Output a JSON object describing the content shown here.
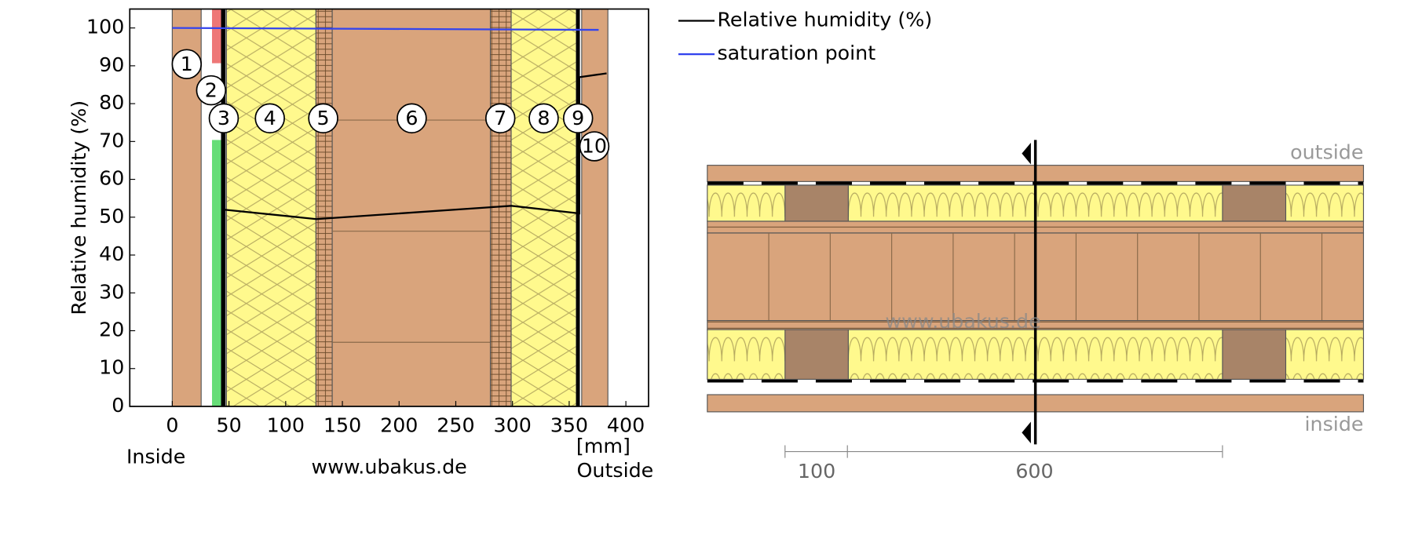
{
  "chart_data": {
    "type": "line",
    "y_label": "Relative humidity (%)",
    "x_unit": "[mm]",
    "x_left_label": "Inside",
    "x_right_label": "Outside",
    "source": "www.ubakus.de",
    "layer_labels": [
      "1",
      "2",
      "3",
      "4",
      "5",
      "6",
      "7",
      "8",
      "9",
      "10"
    ],
    "xlim": [
      -37.5,
      420
    ],
    "ylim": [
      0,
      105
    ],
    "xticks": [
      0,
      50,
      100,
      150,
      200,
      250,
      300,
      350,
      400
    ],
    "yticks": [
      0,
      10,
      20,
      30,
      40,
      50,
      60,
      70,
      80,
      90,
      100
    ],
    "grid": false,
    "series": [
      {
        "name": "Relative humidity (%)",
        "color": "#000000",
        "x": [
          45,
          127,
          299,
          359,
          359,
          383
        ],
        "values": [
          52,
          49.5,
          53,
          51,
          87,
          88
        ]
      },
      {
        "name": "saturation point",
        "color": "#3344ee",
        "x": [
          0,
          376
        ],
        "values": [
          100,
          99.5
        ]
      }
    ]
  },
  "cross_section": {
    "outside_label": "outside",
    "inside_label": "inside",
    "watermark": "www.ubakus.de",
    "dimensions": [
      100,
      600
    ]
  }
}
